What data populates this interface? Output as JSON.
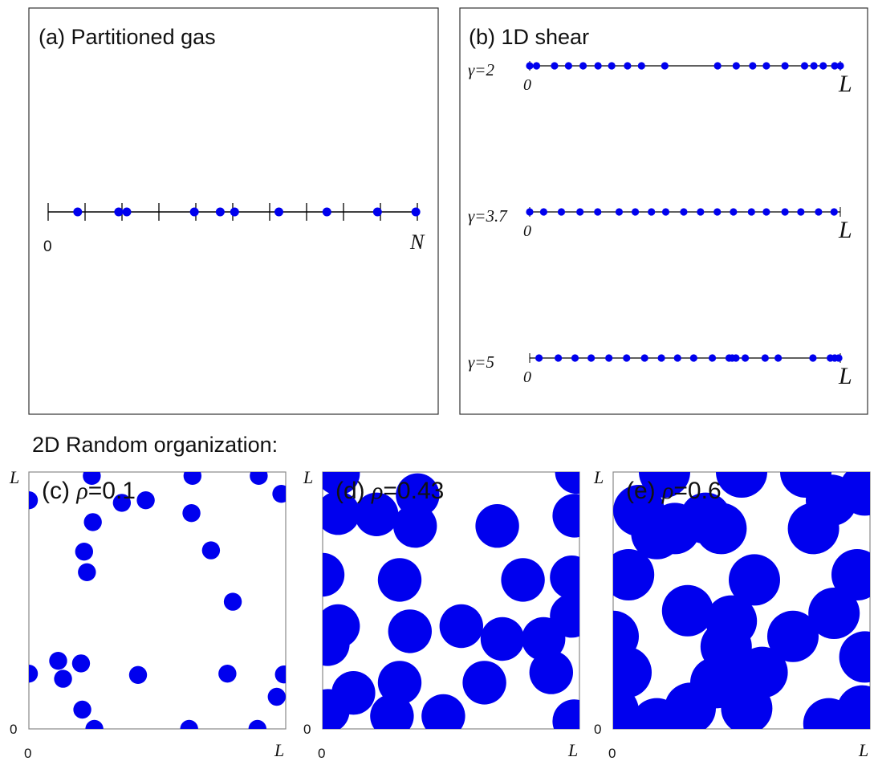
{
  "section_title": "2D Random organization:",
  "colors": {
    "particle": "#0000ee",
    "line": "#000000",
    "frame": "#333333"
  },
  "panel_a": {
    "title": "(a) Partitioned gas",
    "axis_start": "0",
    "axis_end": "N",
    "n_cells": 10,
    "particles": [
      0.8,
      1.91,
      2.13,
      3.96,
      4.66,
      5.05,
      6.25,
      7.55,
      8.92,
      9.96
    ]
  },
  "panel_b": {
    "title": "(b) 1D shear",
    "axis_start": "0",
    "axis_end": "L",
    "rows": [
      {
        "label": "γ=2",
        "particles": [
          0.0,
          0.022,
          0.08,
          0.125,
          0.172,
          0.22,
          0.264,
          0.315,
          0.36,
          0.435,
          0.605,
          0.665,
          0.718,
          0.762,
          0.822,
          0.885,
          0.915,
          0.945,
          0.982,
          1.0
        ]
      },
      {
        "label": "γ=3.7",
        "particles": [
          0.0,
          0.045,
          0.102,
          0.162,
          0.219,
          0.288,
          0.34,
          0.392,
          0.438,
          0.496,
          0.55,
          0.604,
          0.656,
          0.714,
          0.762,
          0.822,
          0.873,
          0.93,
          0.98
        ]
      },
      {
        "label": "γ=5",
        "particles": [
          0.03,
          0.092,
          0.146,
          0.198,
          0.255,
          0.312,
          0.37,
          0.424,
          0.476,
          0.528,
          0.588,
          0.642,
          0.652,
          0.664,
          0.694,
          0.758,
          0.8,
          0.912,
          0.968,
          0.982,
          0.995
        ]
      }
    ]
  },
  "panels_2d": [
    {
      "label": "(c) ",
      "rho_sym": "ρ",
      "rho_val": "=0.1",
      "axis_origin": "0",
      "axis_x_end": "L",
      "axis_y_end": "L",
      "radius": 0.035,
      "particles": [
        [
          0.0,
          0.89
        ],
        [
          0.245,
          0.985
        ],
        [
          0.637,
          0.985
        ],
        [
          0.895,
          0.985
        ],
        [
          0.983,
          0.915
        ],
        [
          0.633,
          0.84
        ],
        [
          0.362,
          0.88
        ],
        [
          0.455,
          0.89
        ],
        [
          0.249,
          0.805
        ],
        [
          0.215,
          0.69
        ],
        [
          0.226,
          0.61
        ],
        [
          0.709,
          0.695
        ],
        [
          0.794,
          0.495
        ],
        [
          0.114,
          0.265
        ],
        [
          0.203,
          0.255
        ],
        [
          0.133,
          0.195
        ],
        [
          0.425,
          0.21
        ],
        [
          0.773,
          0.215
        ],
        [
          0.993,
          0.212
        ],
        [
          0.0,
          0.215
        ],
        [
          0.965,
          0.125
        ],
        [
          0.208,
          0.075
        ],
        [
          0.255,
          0.0
        ],
        [
          0.624,
          0.0
        ],
        [
          0.89,
          0.0
        ]
      ]
    },
    {
      "label": "(d) ",
      "rho_sym": "ρ",
      "rho_val": "=0.43",
      "axis_origin": "0",
      "axis_x_end": "L",
      "axis_y_end": "L",
      "radius": 0.085,
      "particles": [
        [
          0.06,
          0.995
        ],
        [
          0.99,
          1.0
        ],
        [
          0.37,
          0.91
        ],
        [
          0.21,
          0.835
        ],
        [
          0.36,
          0.79
        ],
        [
          0.06,
          0.84
        ],
        [
          0.98,
          0.83
        ],
        [
          0.68,
          0.79
        ],
        [
          0.0,
          0.6
        ],
        [
          0.3,
          0.58
        ],
        [
          0.78,
          0.58
        ],
        [
          0.97,
          0.59
        ],
        [
          0.06,
          0.4
        ],
        [
          0.34,
          0.38
        ],
        [
          0.54,
          0.4
        ],
        [
          0.7,
          0.35
        ],
        [
          0.86,
          0.35
        ],
        [
          0.97,
          0.44
        ],
        [
          0.63,
          0.18
        ],
        [
          0.12,
          0.14
        ],
        [
          0.3,
          0.18
        ],
        [
          0.89,
          0.22
        ],
        [
          0.02,
          0.07
        ],
        [
          0.27,
          0.05
        ],
        [
          0.47,
          0.05
        ],
        [
          0.98,
          0.03
        ],
        [
          0.02,
          0.33
        ]
      ]
    },
    {
      "label": "(e) ",
      "rho_sym": "ρ",
      "rho_val": "=0.6",
      "axis_origin": "0",
      "axis_x_end": "L",
      "axis_y_end": "L",
      "radius": 0.1,
      "particles": [
        [
          0.2,
          1.0
        ],
        [
          0.5,
          1.0
        ],
        [
          0.75,
          1.0
        ],
        [
          0.85,
          0.89
        ],
        [
          0.78,
          0.78
        ],
        [
          0.98,
          0.93
        ],
        [
          0.1,
          0.85
        ],
        [
          0.24,
          0.78
        ],
        [
          0.36,
          0.82
        ],
        [
          0.17,
          0.76
        ],
        [
          0.42,
          0.78
        ],
        [
          0.06,
          0.6
        ],
        [
          0.55,
          0.58
        ],
        [
          0.95,
          0.6
        ],
        [
          0.86,
          0.45
        ],
        [
          0.0,
          0.36
        ],
        [
          0.29,
          0.46
        ],
        [
          0.46,
          0.42
        ],
        [
          0.44,
          0.32
        ],
        [
          0.7,
          0.36
        ],
        [
          0.58,
          0.22
        ],
        [
          0.4,
          0.18
        ],
        [
          0.05,
          0.22
        ],
        [
          0.3,
          0.08
        ],
        [
          0.52,
          0.08
        ],
        [
          0.84,
          0.02
        ],
        [
          0.98,
          0.28
        ],
        [
          0.97,
          0.07
        ],
        [
          0.0,
          0.07
        ],
        [
          0.17,
          0.02
        ]
      ]
    }
  ]
}
